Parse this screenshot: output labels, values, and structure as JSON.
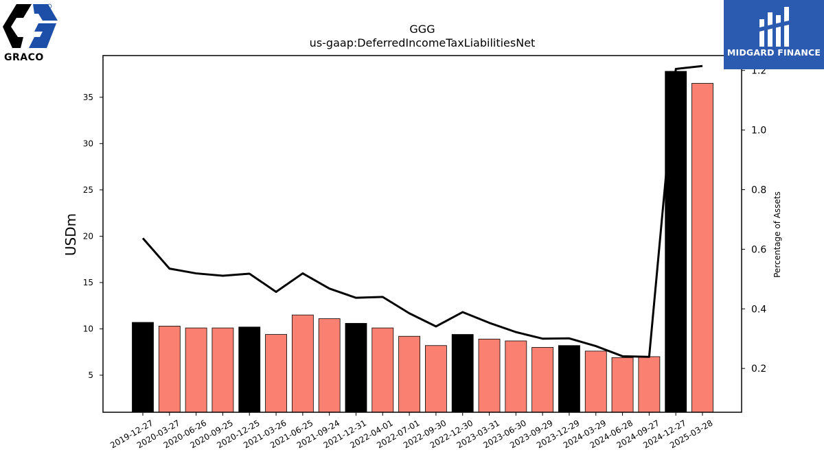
{
  "logos": {
    "left_brand": "GRACO",
    "right_brand": "MIDGARD FINANCE"
  },
  "chart_data": {
    "type": "bar",
    "title": "GGG",
    "subtitle": "us-gaap:DeferredIncomeTaxLiabilitiesNet",
    "ylabel": "USDm",
    "y2label": "Percentage of Assets",
    "categories": [
      "2019-12-27",
      "2020-03-27",
      "2020-06-26",
      "2020-09-25",
      "2020-12-25",
      "2021-03-26",
      "2021-06-25",
      "2021-09-24",
      "2021-12-31",
      "2022-04-01",
      "2022-07-01",
      "2022-09-30",
      "2022-12-30",
      "2023-03-31",
      "2023-06-30",
      "2023-09-29",
      "2023-12-29",
      "2024-03-29",
      "2024-06-28",
      "2024-09-27",
      "2024-12-27",
      "2025-03-28"
    ],
    "series": [
      {
        "type": "bar",
        "values": [
          10.7,
          10.3,
          10.1,
          10.1,
          10.2,
          9.4,
          11.5,
          11.1,
          10.6,
          10.1,
          9.2,
          8.2,
          9.4,
          8.9,
          8.7,
          8.0,
          8.2,
          7.6,
          6.9,
          7.0,
          37.8,
          36.5
        ],
        "colors": [
          "#000000",
          "#fa8072",
          "#fa8072",
          "#fa8072",
          "#000000",
          "#fa8072",
          "#fa8072",
          "#fa8072",
          "#000000",
          "#fa8072",
          "#fa8072",
          "#fa8072",
          "#000000",
          "#fa8072",
          "#fa8072",
          "#fa8072",
          "#000000",
          "#fa8072",
          "#fa8072",
          "#fa8072",
          "#000000",
          "#fa8072"
        ]
      },
      {
        "type": "line",
        "axis": "right",
        "values": [
          0.637,
          0.535,
          0.519,
          0.511,
          0.518,
          0.457,
          0.519,
          0.468,
          0.437,
          0.44,
          0.385,
          0.341,
          0.389,
          0.353,
          0.322,
          0.3,
          0.301,
          0.275,
          0.241,
          0.239,
          1.205,
          1.215
        ],
        "color": "#000000"
      }
    ],
    "ylim": [
      1,
      39.5
    ],
    "y2lim": [
      0.053,
      1.25
    ],
    "yticks": [
      5,
      10,
      15,
      20,
      25,
      30,
      35
    ],
    "y2ticks": [
      0.2,
      0.4,
      0.6,
      0.8,
      1.0,
      1.2
    ],
    "y2tick_labels": [
      "0.2",
      "0.4",
      "0.6",
      "0.8",
      "1.0",
      "1.2"
    ],
    "grid": false
  }
}
